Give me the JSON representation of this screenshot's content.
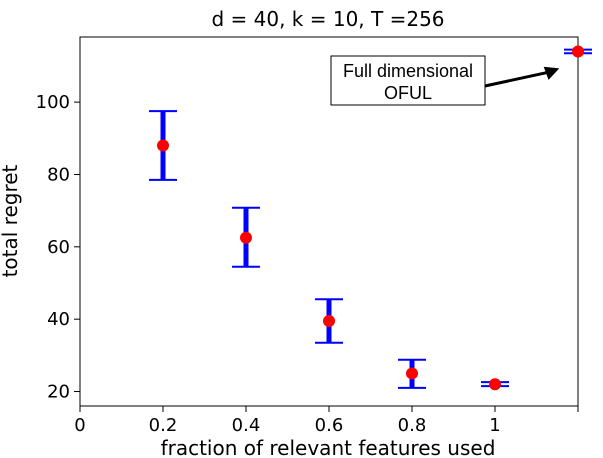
{
  "chart_data": {
    "type": "scatter",
    "title": "d = 40, k = 10, T =256",
    "xlabel": "fraction of relevant features used",
    "ylabel": "total regret",
    "xlim": [
      0,
      1.2
    ],
    "ylim": [
      16,
      118
    ],
    "x_ticks": [
      {
        "value": 0,
        "label": "0"
      },
      {
        "value": 0.2,
        "label": "0.2"
      },
      {
        "value": 0.4,
        "label": "0.4"
      },
      {
        "value": 0.6,
        "label": "0.6"
      },
      {
        "value": 0.8,
        "label": "0.8"
      },
      {
        "value": 1,
        "label": "1"
      },
      {
        "value": 1.2,
        "label": ""
      }
    ],
    "y_ticks": [
      20,
      40,
      60,
      80,
      100
    ],
    "grid": false,
    "series": [
      {
        "marker_color": "#ff0000",
        "errorbar_color": "#0000ff",
        "points": [
          {
            "x": 0.2,
            "y": 88,
            "low": 78.5,
            "high": 97.5
          },
          {
            "x": 0.4,
            "y": 62.5,
            "low": 54.5,
            "high": 70.8
          },
          {
            "x": 0.6,
            "y": 39.5,
            "low": 33.5,
            "high": 45.5
          },
          {
            "x": 0.8,
            "y": 25,
            "low": 21,
            "high": 28.8
          },
          {
            "x": 1.0,
            "y": 22,
            "low": 21.5,
            "high": 22.6
          },
          {
            "x": 1.2,
            "y": 114,
            "low": 113.5,
            "high": 114.5
          }
        ]
      }
    ],
    "annotation": {
      "lines": [
        "Full dimensional",
        "OFUL"
      ],
      "points_to": {
        "x": 1.2,
        "y": 114
      }
    }
  }
}
